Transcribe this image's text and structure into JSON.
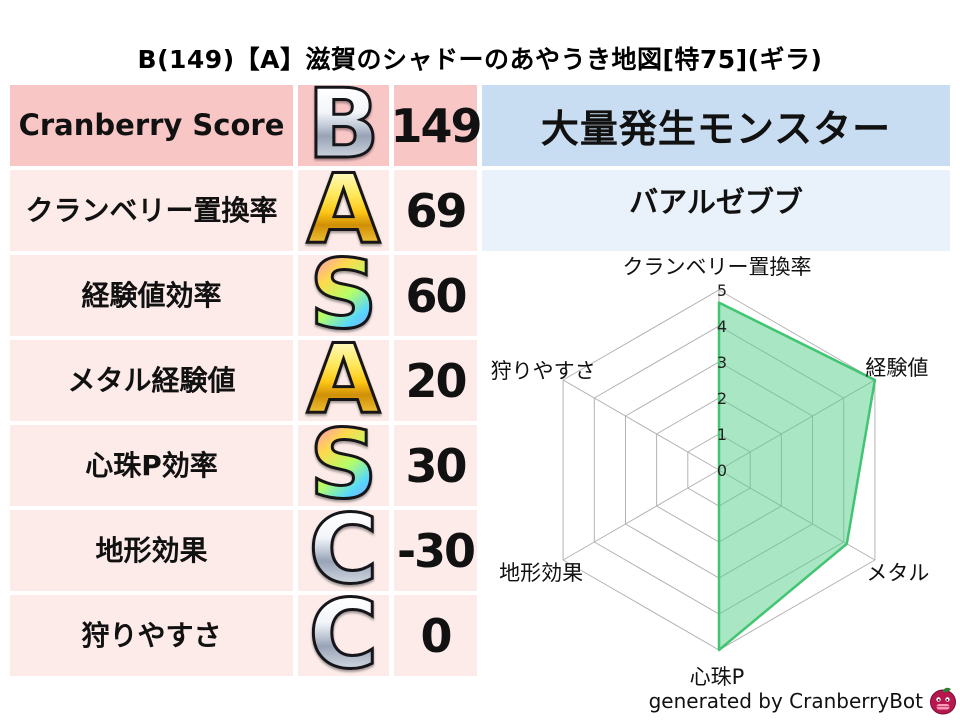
{
  "title": "B(149)【A】滋賀のシャドーのあやうき地図[特75](ギラ)",
  "stats_table": {
    "rows": [
      {
        "label": "Cranberry Score",
        "grade": "B",
        "grade_style": "silver",
        "value": "149"
      },
      {
        "label": "クランベリー置換率",
        "grade": "A",
        "grade_style": "gold",
        "value": "69"
      },
      {
        "label": "経験値効率",
        "grade": "S",
        "grade_style": "rainbow",
        "value": "60"
      },
      {
        "label": "メタル経験値",
        "grade": "A",
        "grade_style": "gold",
        "value": "20"
      },
      {
        "label": "心珠P効率",
        "grade": "S",
        "grade_style": "rainbow",
        "value": "30"
      },
      {
        "label": "地形効果",
        "grade": "C",
        "grade_style": "silver",
        "value": "-30"
      },
      {
        "label": "狩りやすさ",
        "grade": "C",
        "grade_style": "silver",
        "value": "0"
      }
    ]
  },
  "monster_panel": {
    "header": "大量発生モンスター",
    "name": "バアルゼブブ"
  },
  "footer": {
    "credit": "generated by CranberryBot",
    "icon": "cranberry-bot-icon"
  },
  "colors": {
    "row_dark_pink": "#f9c6c6",
    "row_light_pink": "#fcebe9",
    "header_blue": "#c9ddf2",
    "name_blue": "#e9f1fa",
    "radar_fill": "rgba(82,205,137,0.5)",
    "radar_edge": "#42c473",
    "grid_gray": "#b3b3b3"
  },
  "chart_data": {
    "type": "radar",
    "grid_shape": "hexagon",
    "categories": [
      "クランベリー置換率",
      "経験値",
      "メタル",
      "心珠P",
      "地形効果",
      "狩りやすさ"
    ],
    "values": [
      4.65,
      5,
      4.1,
      5,
      0,
      0
    ],
    "range": [
      0,
      5
    ],
    "tick_labels": [
      "0",
      "1",
      "2",
      "3",
      "4",
      "5"
    ],
    "legend": null,
    "fill_color": "rgba(82,205,137,0.5)",
    "edge_color": "#42c473",
    "grid_color": "#b3b3b3"
  }
}
